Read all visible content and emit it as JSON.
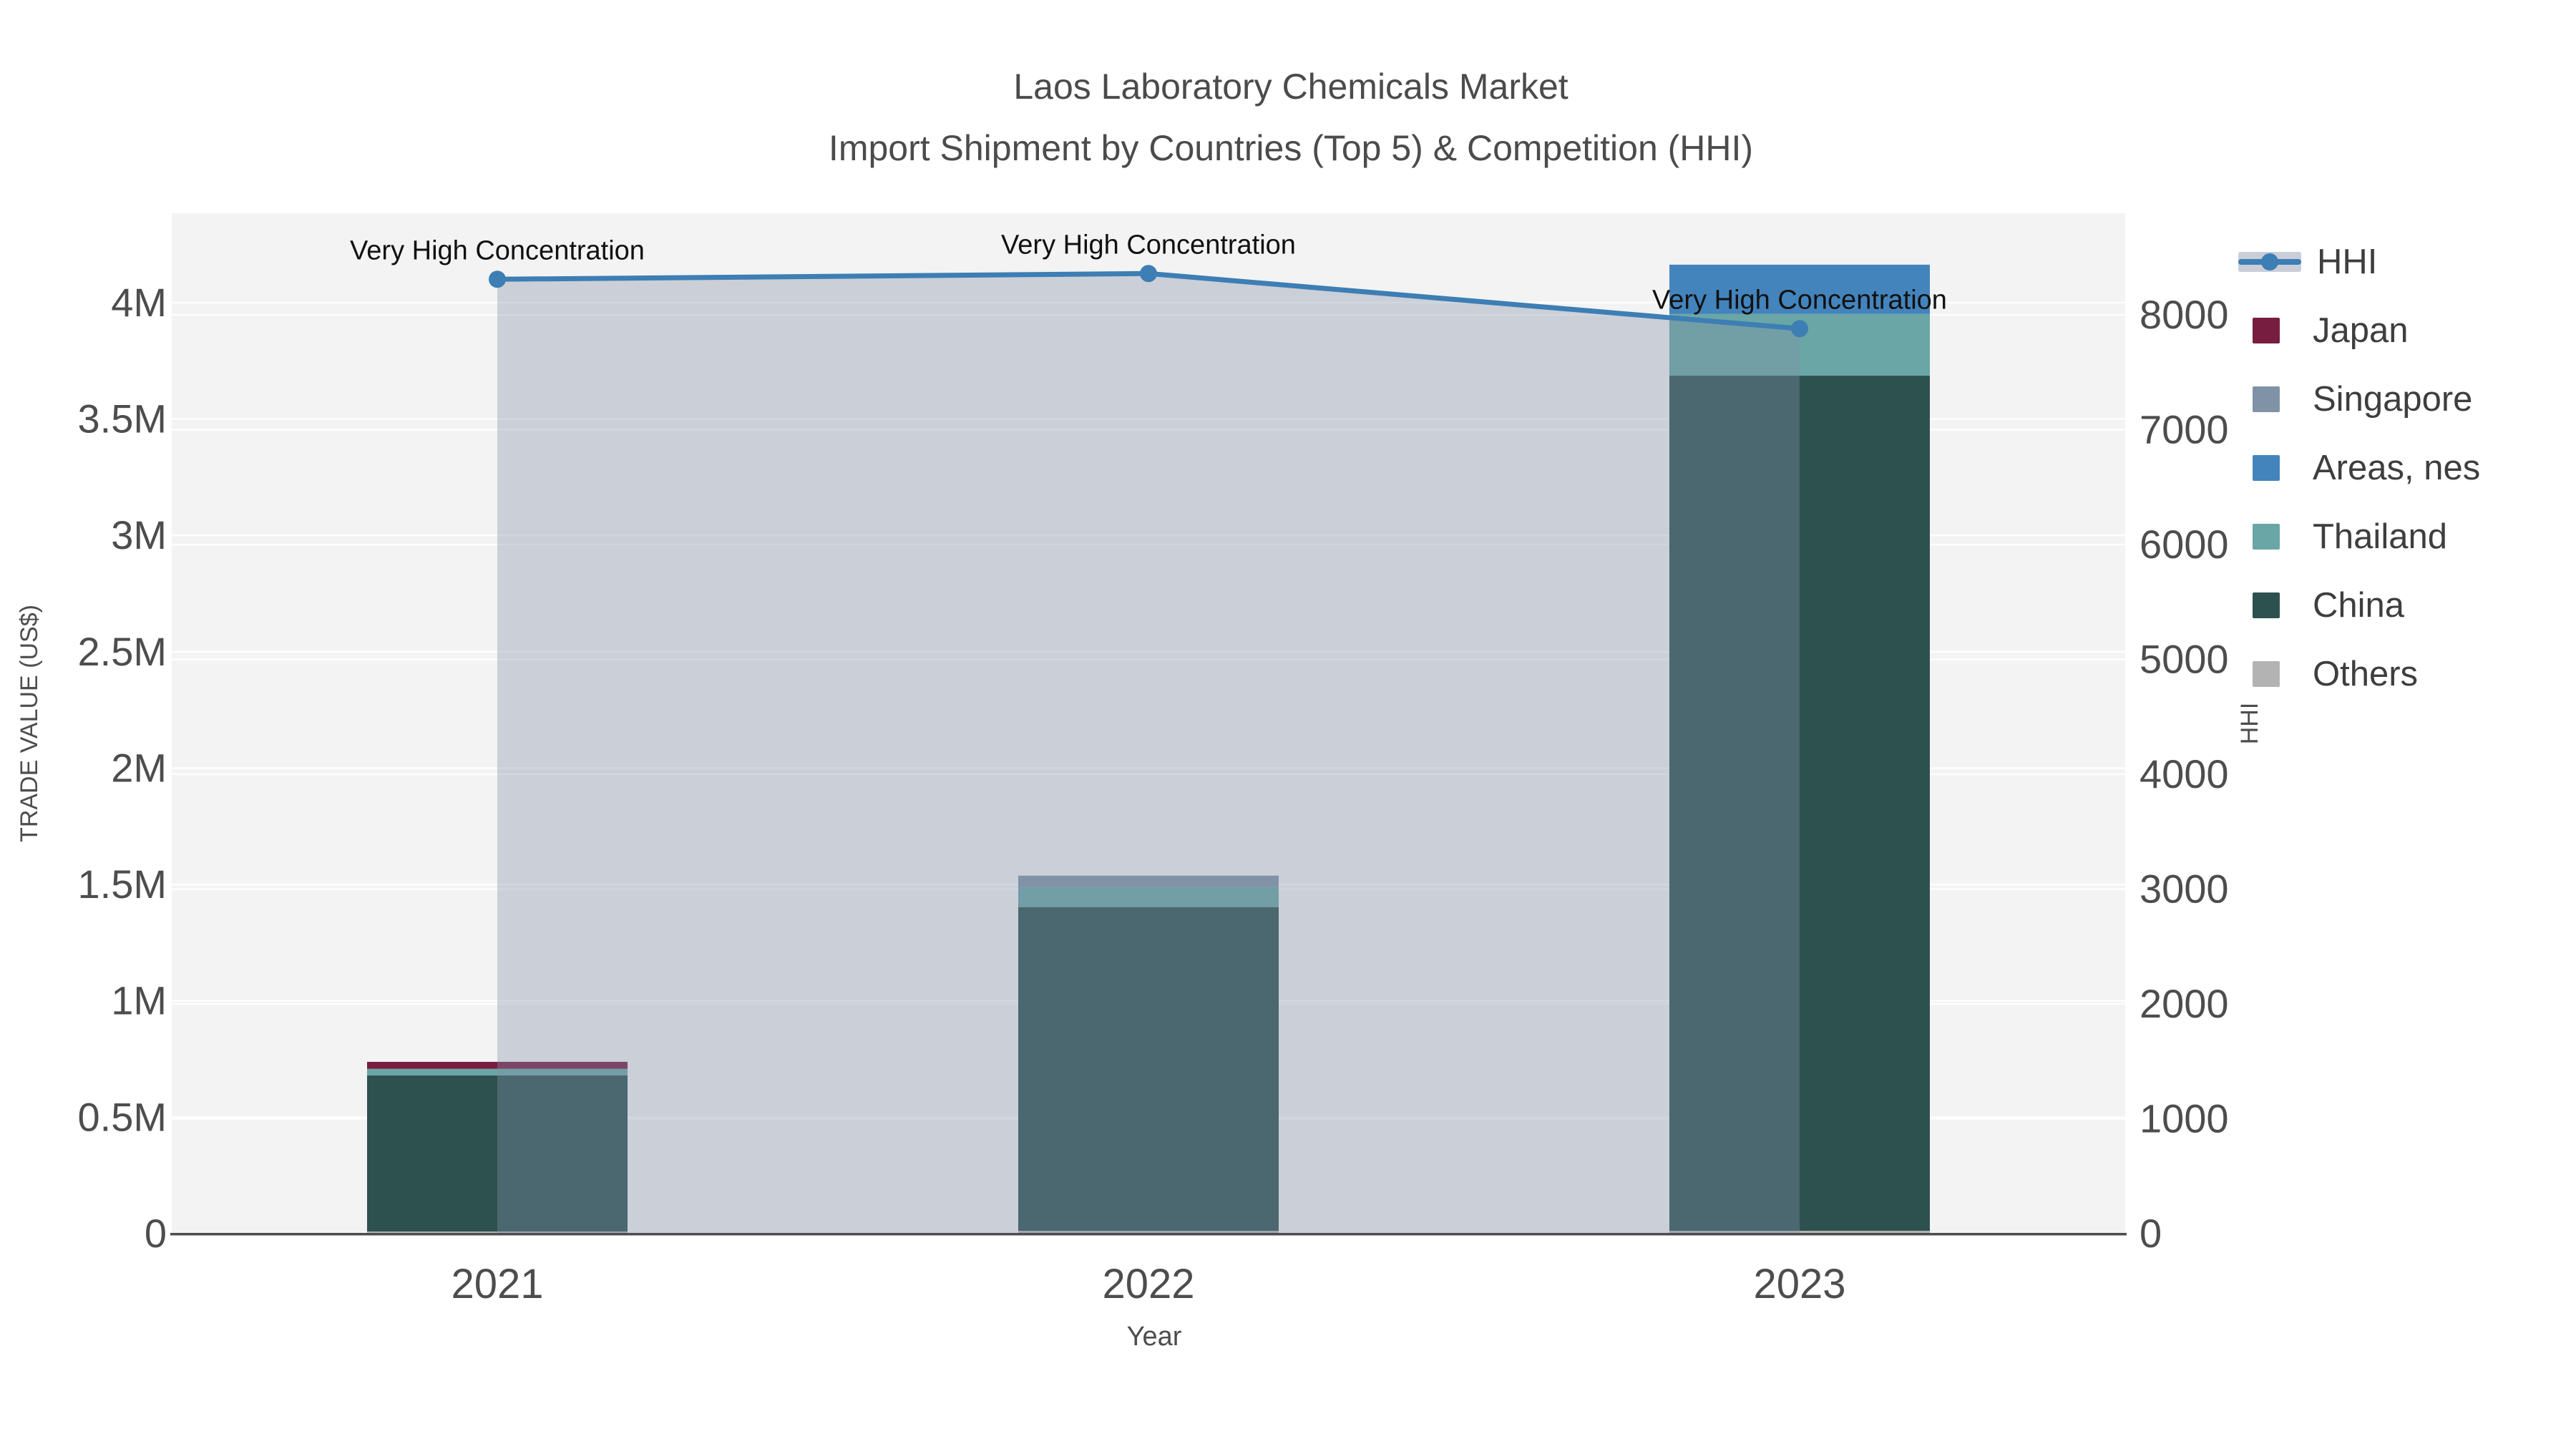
{
  "title": {
    "line1": "Laos Laboratory Chemicals Market",
    "line2": "Import Shipment by Countries (Top 5) & Competition (HHI)"
  },
  "layout_hints": {
    "plot_bg": "#f2f3f2",
    "grid_color": "#ffffff",
    "axis_line_color": "#4d4d4d",
    "tick_color": "#4d4d4d",
    "title_color": "#4b4b4b",
    "annotation_color": "#111111",
    "legend_text_color": "#3e3e3e",
    "legend_position": "right",
    "grid": "on"
  },
  "chart_data": {
    "type": "combo: stacked bar (trade value) + line-area (HHI, right axis)",
    "categories": [
      "2021",
      "2022",
      "2023"
    ],
    "series": [
      {
        "name": "Japan",
        "color": "#771d40",
        "values": [
          30000,
          0,
          0
        ]
      },
      {
        "name": "Singapore",
        "color": "#8093a6",
        "values": [
          0,
          49000,
          0
        ]
      },
      {
        "name": "Areas, nes",
        "color": "#4484bd",
        "values": [
          0,
          0,
          212000
        ]
      },
      {
        "name": "Thailand",
        "color": "#6aa6a5",
        "values": [
          28000,
          86000,
          265000
        ]
      },
      {
        "name": "China",
        "color": "#2d514f",
        "values": [
          671000,
          1391000,
          3674000
        ]
      },
      {
        "name": "Others",
        "color": "#b3b3b3",
        "values": [
          9000,
          12000,
          12000
        ]
      }
    ],
    "stack_order_bottom_to_top": [
      "Others",
      "China",
      "Thailand",
      "Areas, nes",
      "Singapore",
      "Japan"
    ],
    "line_series": {
      "name": "HHI",
      "color": "#3d7eb4",
      "area_fill": "rgba(130,144,168,0.36)",
      "axis": "right",
      "values": [
        8310,
        8360,
        7880
      ]
    },
    "annotations": [
      {
        "category_index": 0,
        "text": "Very High Concentration"
      },
      {
        "category_index": 1,
        "text": "Very High Concentration"
      },
      {
        "category_index": 2,
        "text": "Very High Concentration"
      }
    ],
    "left_axis": {
      "title": "TRADE VALUE (US$)",
      "tick_labels": [
        "0",
        "0.5M",
        "1M",
        "1.5M",
        "2M",
        "2.5M",
        "3M",
        "3.5M",
        "4M"
      ],
      "tick_values": [
        0,
        500000,
        1000000,
        1500000,
        2000000,
        2500000,
        3000000,
        3500000,
        4000000
      ],
      "range_max": 4384000
    },
    "right_axis": {
      "title": "HHI",
      "tick_labels": [
        "0",
        "1000",
        "2000",
        "3000",
        "4000",
        "5000",
        "6000",
        "7000",
        "8000"
      ],
      "tick_values": [
        0,
        1000,
        2000,
        3000,
        4000,
        5000,
        6000,
        7000,
        8000
      ],
      "range_max": 8885
    },
    "x_axis": {
      "title": "Year"
    },
    "legend": [
      {
        "name": "HHI",
        "type": "line"
      },
      {
        "name": "Japan",
        "type": "box",
        "color": "#771d40"
      },
      {
        "name": "Singapore",
        "type": "box",
        "color": "#8093a6"
      },
      {
        "name": "Areas, nes",
        "type": "box",
        "color": "#4484bd"
      },
      {
        "name": "Thailand",
        "type": "box",
        "color": "#6aa6a5"
      },
      {
        "name": "China",
        "type": "box",
        "color": "#2d514f"
      },
      {
        "name": "Others",
        "type": "box",
        "color": "#b3b3b3"
      }
    ]
  }
}
